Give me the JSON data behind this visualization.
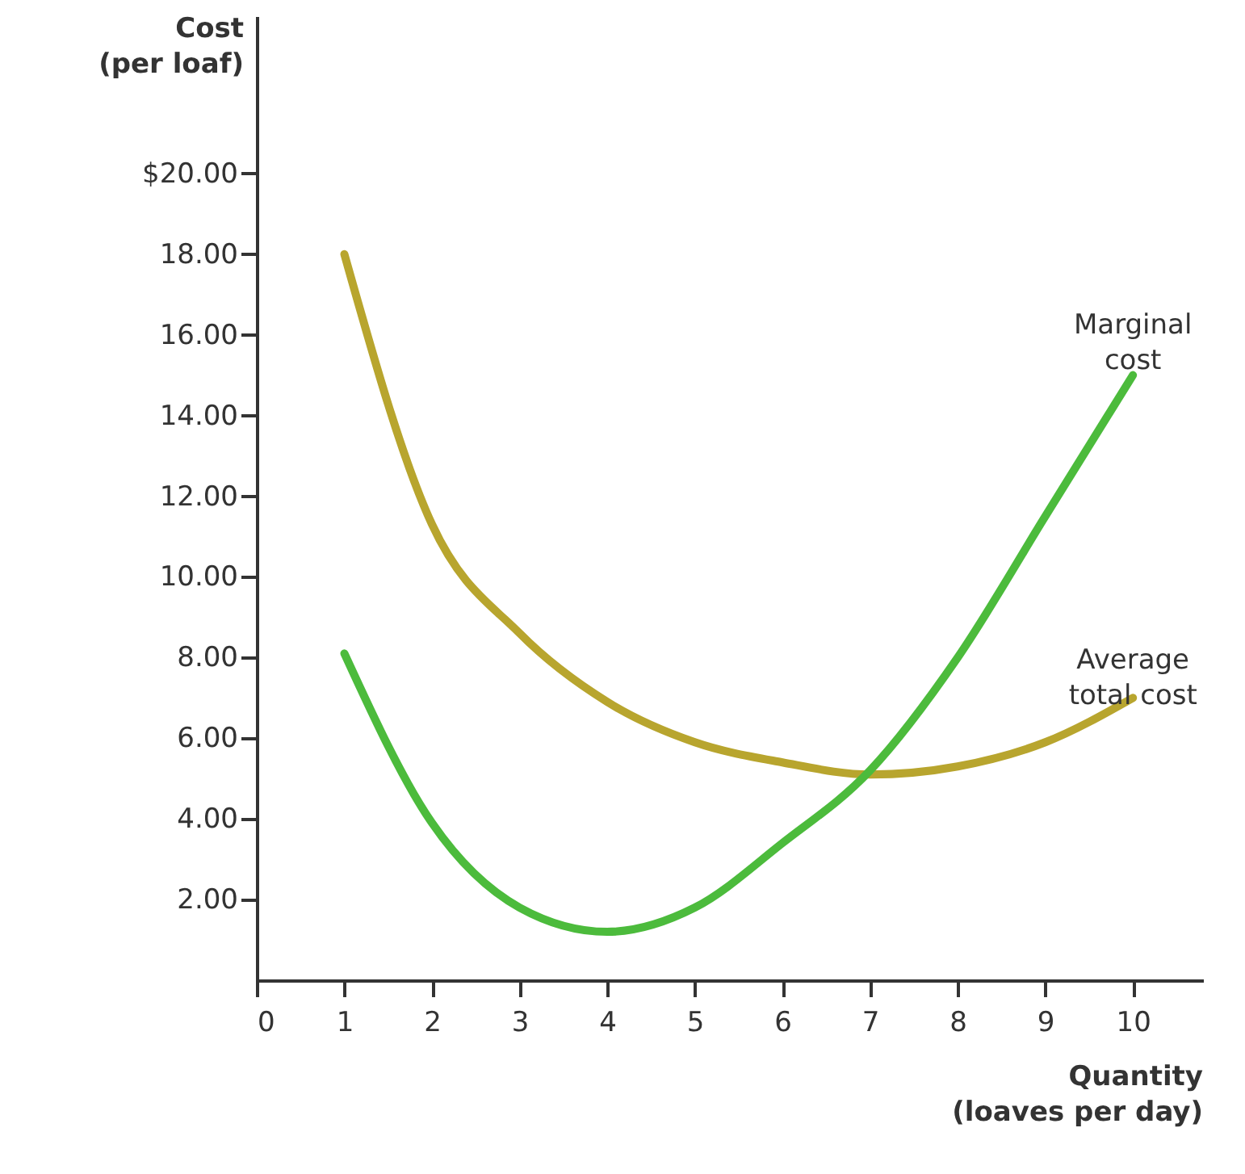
{
  "chart_data": {
    "type": "line",
    "xlabel": "Quantity\n(loaves per day)",
    "ylabel": "Cost\n(per loaf)",
    "x": [
      1,
      2,
      3,
      4,
      5,
      6,
      7,
      8,
      9,
      10
    ],
    "series": [
      {
        "name": "Average\ntotal cost",
        "color": "#b8a52e",
        "values": [
          18.0,
          11.3,
          8.6,
          6.9,
          5.9,
          5.4,
          5.1,
          5.3,
          5.9,
          7.0
        ]
      },
      {
        "name": "Marginal\ncost",
        "color": "#4cbb3c",
        "values": [
          8.1,
          3.9,
          1.8,
          1.2,
          1.8,
          3.4,
          5.2,
          8.0,
          11.5,
          15.0
        ]
      }
    ],
    "xlim": [
      0,
      10.8
    ],
    "ylim": [
      0,
      23.9
    ],
    "xticks": [
      {
        "value": 0,
        "label": "0"
      },
      1,
      2,
      3,
      4,
      5,
      6,
      7,
      8,
      9,
      10
    ],
    "yticks": [
      {
        "value": 2,
        "label": "2.00"
      },
      {
        "value": 4,
        "label": "4.00"
      },
      {
        "value": 6,
        "label": "6.00"
      },
      {
        "value": 8,
        "label": "8.00"
      },
      {
        "value": 10,
        "label": "10.00"
      },
      {
        "value": 12,
        "label": "12.00"
      },
      {
        "value": 14,
        "label": "14.00"
      },
      {
        "value": 16,
        "label": "16.00"
      },
      {
        "value": 18,
        "label": "18.00"
      },
      {
        "value": 20,
        "label": "$20.00"
      }
    ],
    "grid": false,
    "marker": "none",
    "line_style": "solid",
    "legend": false
  }
}
